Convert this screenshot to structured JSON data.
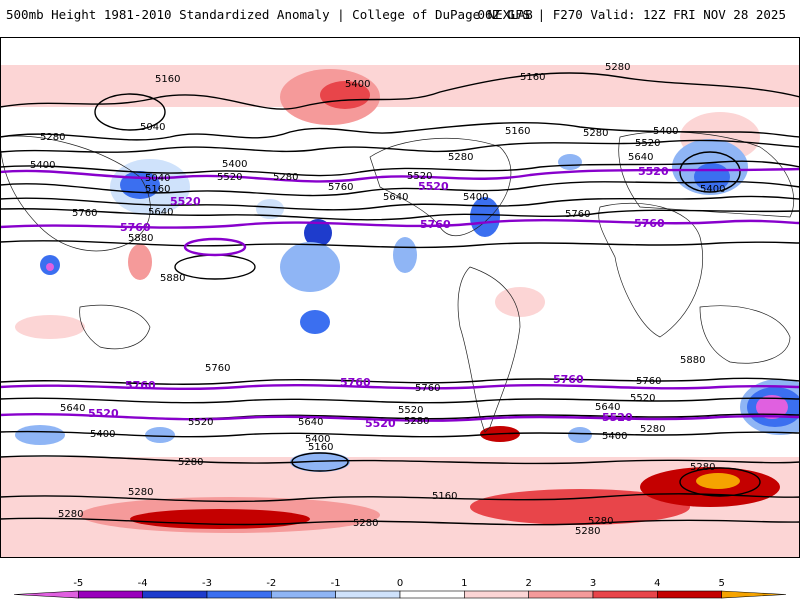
{
  "header": {
    "title": "500mb Height 1981-2010 Standardized Anomaly | College of DuPage NEXLAB",
    "run_info": "06Z GFS | F270 Valid: 12Z FRI NOV 28 2025"
  },
  "contour_labels": {
    "c5160": "5160",
    "c5040": "5040",
    "c5280": "5280",
    "c5400": "5400",
    "c5520": "5520",
    "c5640": "5640",
    "c5760": "5760",
    "c5880": "5880"
  },
  "colorbar": {
    "ticks": [
      "-5",
      "-4",
      "-3",
      "-2",
      "-1",
      "0",
      "1",
      "2",
      "3",
      "4",
      "5"
    ],
    "colors": [
      "#e060e0",
      "#9900bb",
      "#1e3ccc",
      "#3b6ff0",
      "#8fb5f5",
      "#cfe2fb",
      "#ffffff",
      "#fcd5d5",
      "#f59a9a",
      "#e8454a",
      "#c40000",
      "#f5a300"
    ]
  },
  "colors": {
    "height_contour": "#000000",
    "highlight_contour": "#8800cc"
  }
}
